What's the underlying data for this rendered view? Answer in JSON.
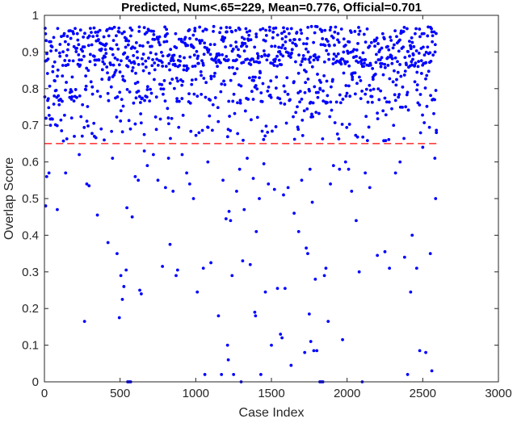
{
  "chart_data": {
    "type": "scatter",
    "title": "Predicted, Num<.65=229, Mean=0.776, Official=0.701",
    "xlabel": "Case Index",
    "ylabel": "Overlap Score",
    "xlim": [
      0,
      3000
    ],
    "ylim": [
      0,
      1
    ],
    "xticks": [
      0,
      500,
      1000,
      1500,
      2000,
      2500,
      3000
    ],
    "yticks": [
      0,
      0.1,
      0.2,
      0.3,
      0.4,
      0.5,
      0.6,
      0.7,
      0.8,
      0.9,
      1
    ],
    "grid": false,
    "threshold": 0.65,
    "threshold_color": "#ff0000",
    "point_color": "#0000ff",
    "n_points": 2590,
    "x_range": [
      1,
      2590
    ],
    "series": [
      {
        "points": [
          [
            8,
            0.48
          ],
          [
            15,
            0.56
          ],
          [
            30,
            0.57
          ],
          [
            40,
            0.7
          ],
          [
            65,
            0.78
          ],
          [
            85,
            0.47
          ],
          [
            140,
            0.57
          ],
          [
            180,
            0.72
          ],
          [
            230,
            0.62
          ],
          [
            265,
            0.165
          ],
          [
            280,
            0.54
          ],
          [
            295,
            0.535
          ],
          [
            330,
            0.67
          ],
          [
            350,
            0.455
          ],
          [
            375,
            0.69
          ],
          [
            395,
            0.66
          ],
          [
            420,
            0.38
          ],
          [
            450,
            0.61
          ],
          [
            480,
            0.35
          ],
          [
            495,
            0.175
          ],
          [
            505,
            0.29
          ],
          [
            515,
            0.225
          ],
          [
            525,
            0.26
          ],
          [
            540,
            0.305
          ],
          [
            545,
            0.475
          ],
          [
            550,
            0.0
          ],
          [
            560,
            0.0
          ],
          [
            570,
            0.0
          ],
          [
            580,
            0.45
          ],
          [
            600,
            0.56
          ],
          [
            620,
            0.55
          ],
          [
            630,
            0.25
          ],
          [
            640,
            0.24
          ],
          [
            660,
            0.63
          ],
          [
            680,
            0.59
          ],
          [
            720,
            0.62
          ],
          [
            750,
            0.55
          ],
          [
            780,
            0.315
          ],
          [
            800,
            0.53
          ],
          [
            820,
            0.61
          ],
          [
            830,
            0.375
          ],
          [
            850,
            0.52
          ],
          [
            870,
            0.29
          ],
          [
            880,
            0.305
          ],
          [
            910,
            0.62
          ],
          [
            940,
            0.57
          ],
          [
            960,
            0.54
          ],
          [
            985,
            0.5
          ],
          [
            1010,
            0.245
          ],
          [
            1050,
            0.31
          ],
          [
            1060,
            0.02
          ],
          [
            1080,
            0.6
          ],
          [
            1100,
            0.325
          ],
          [
            1150,
            0.18
          ],
          [
            1170,
            0.02
          ],
          [
            1180,
            0.55
          ],
          [
            1200,
            0.445
          ],
          [
            1210,
            0.1
          ],
          [
            1215,
            0.06
          ],
          [
            1220,
            0.465
          ],
          [
            1230,
            0.44
          ],
          [
            1240,
            0.29
          ],
          [
            1250,
            0.02
          ],
          [
            1270,
            0.52
          ],
          [
            1290,
            0.58
          ],
          [
            1300,
            0.0
          ],
          [
            1310,
            0.33
          ],
          [
            1320,
            0.47
          ],
          [
            1340,
            0.61
          ],
          [
            1360,
            0.32
          ],
          [
            1380,
            0.555
          ],
          [
            1390,
            0.19
          ],
          [
            1395,
            0.18
          ],
          [
            1400,
            0.41
          ],
          [
            1420,
            0.5
          ],
          [
            1430,
            0.02
          ],
          [
            1450,
            0.595
          ],
          [
            1460,
            0.245
          ],
          [
            1480,
            0.54
          ],
          [
            1500,
            0.1
          ],
          [
            1520,
            0.525
          ],
          [
            1540,
            0.255
          ],
          [
            1560,
            0.13
          ],
          [
            1570,
            0.12
          ],
          [
            1580,
            0.51
          ],
          [
            1590,
            0.255
          ],
          [
            1610,
            0.53
          ],
          [
            1630,
            0.045
          ],
          [
            1650,
            0.46
          ],
          [
            1680,
            0.41
          ],
          [
            1700,
            0.55
          ],
          [
            1720,
            0.08
          ],
          [
            1730,
            0.365
          ],
          [
            1740,
            0.35
          ],
          [
            1750,
            0.185
          ],
          [
            1755,
            0.58
          ],
          [
            1760,
            0.11
          ],
          [
            1770,
            0.49
          ],
          [
            1780,
            0.085
          ],
          [
            1790,
            0.28
          ],
          [
            1800,
            0.085
          ],
          [
            1820,
            0.0
          ],
          [
            1830,
            0.0
          ],
          [
            1840,
            0.0
          ],
          [
            1850,
            0.29
          ],
          [
            1860,
            0.31
          ],
          [
            1875,
            0.165
          ],
          [
            1890,
            0.54
          ],
          [
            1910,
            0.59
          ],
          [
            1950,
            0.58
          ],
          [
            1970,
            0.115
          ],
          [
            1990,
            0.6
          ],
          [
            2010,
            0.58
          ],
          [
            2030,
            0.52
          ],
          [
            2060,
            0.44
          ],
          [
            2080,
            0.3
          ],
          [
            2100,
            0.0
          ],
          [
            2120,
            0.57
          ],
          [
            2150,
            0.53
          ],
          [
            2200,
            0.345
          ],
          [
            2250,
            0.355
          ],
          [
            2280,
            0.31
          ],
          [
            2320,
            0.57
          ],
          [
            2350,
            0.6
          ],
          [
            2380,
            0.34
          ],
          [
            2400,
            0.02
          ],
          [
            2420,
            0.245
          ],
          [
            2430,
            0.4
          ],
          [
            2460,
            0.31
          ],
          [
            2480,
            0.085
          ],
          [
            2500,
            0.64
          ],
          [
            2520,
            0.08
          ],
          [
            2550,
            0.35
          ],
          [
            2560,
            0.03
          ],
          [
            2580,
            0.61
          ],
          [
            2585,
            0.5
          ],
          [
            2590,
            0.68
          ]
        ]
      }
    ]
  }
}
